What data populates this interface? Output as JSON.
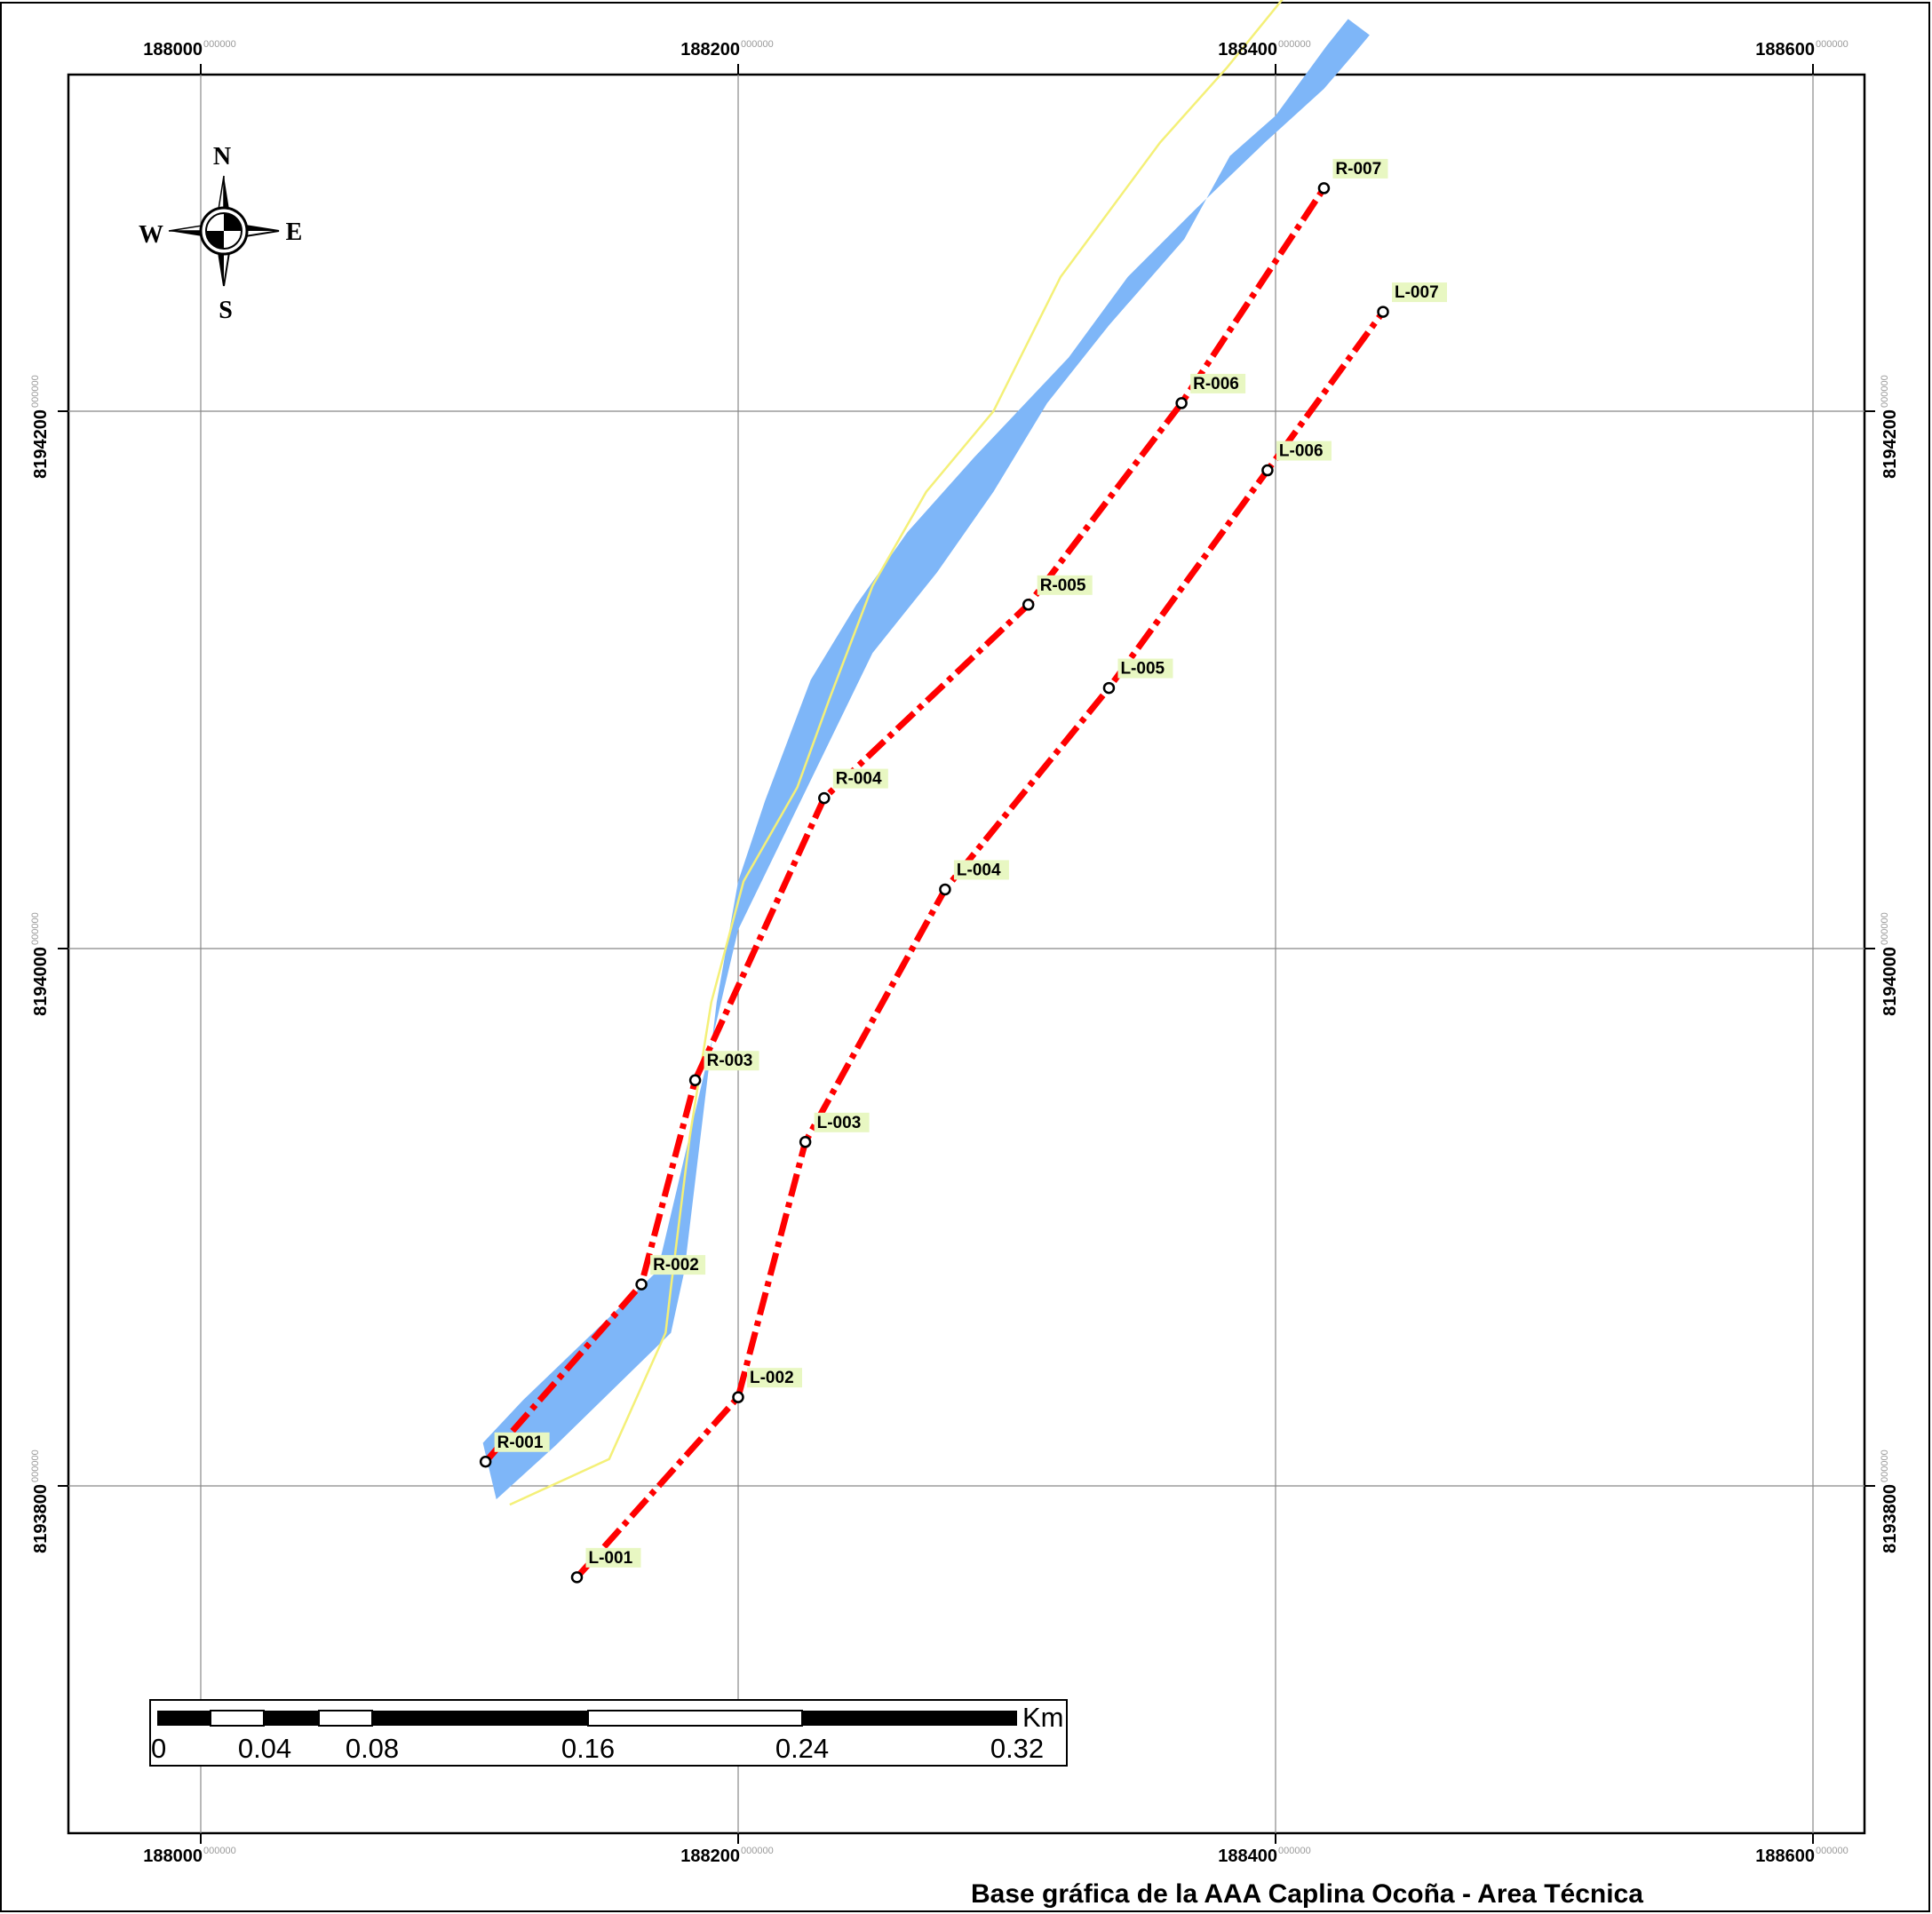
{
  "map": {
    "x_ticks": [
      {
        "main": "188000",
        "sub": "000000",
        "value": 188000
      },
      {
        "main": "188200",
        "sub": "000000",
        "value": 188200
      },
      {
        "main": "188400",
        "sub": "000000",
        "value": 188400
      },
      {
        "main": "188600",
        "sub": "000000",
        "value": 188600
      }
    ],
    "y_ticks": [
      {
        "main": "8194200",
        "sub": "000000",
        "value": 8194200
      },
      {
        "main": "8194000",
        "sub": "000000",
        "value": 8194000
      },
      {
        "main": "8193800",
        "sub": "000000",
        "value": 8193800
      }
    ],
    "colors": {
      "river": "#7eb6f8",
      "centerline": "#f4f078",
      "boundary": "#ff0000",
      "label_bg": "#e8f7c2",
      "grid": "#888888"
    },
    "river_polygon": [
      [
        188110,
        8193795
      ],
      [
        188132,
        8193815
      ],
      [
        188175,
        8193857
      ],
      [
        188180,
        8193880
      ],
      [
        188192,
        8193980
      ],
      [
        188200,
        8194025
      ],
      [
        188210,
        8194055
      ],
      [
        188227,
        8194100
      ],
      [
        188244,
        8194128
      ],
      [
        188263,
        8194155
      ],
      [
        188288,
        8194183
      ],
      [
        188323,
        8194220
      ],
      [
        188345,
        8194250
      ],
      [
        188370,
        8194275
      ],
      [
        188396,
        8194300
      ],
      [
        188418,
        8194320
      ],
      [
        188430,
        8194334
      ],
      [
        188435,
        8194340
      ],
      [
        188427,
        8194346
      ],
      [
        188419,
        8194336
      ],
      [
        188400,
        8194310
      ],
      [
        188383,
        8194295
      ],
      [
        188366,
        8194264
      ],
      [
        188338,
        8194232
      ],
      [
        188315,
        8194203
      ],
      [
        188295,
        8194170
      ],
      [
        188274,
        8194140
      ],
      [
        188250,
        8194110
      ],
      [
        188233,
        8194075
      ],
      [
        188200,
        8194007
      ],
      [
        188170,
        8193880
      ],
      [
        188120,
        8193832
      ],
      [
        188105,
        8193816
      ]
    ],
    "centerline": [
      [
        188115,
        8193793
      ],
      [
        188152,
        8193810
      ],
      [
        188173,
        8193857
      ],
      [
        188175,
        8193874
      ],
      [
        188182,
        8193930
      ],
      [
        188190,
        8193980
      ],
      [
        188202,
        8194025
      ],
      [
        188222,
        8194060
      ],
      [
        188234,
        8194093
      ],
      [
        188250,
        8194135
      ],
      [
        188270,
        8194170
      ],
      [
        188295,
        8194200
      ],
      [
        188320,
        8194250
      ],
      [
        188357,
        8194300
      ],
      [
        188382,
        8194328
      ],
      [
        188408,
        8194360
      ],
      [
        188420,
        8194377
      ],
      [
        188430,
        8194396
      ]
    ],
    "left_boundary": [
      [
        188140,
        8193766
      ],
      [
        188200,
        8193833
      ],
      [
        188225,
        8193928
      ],
      [
        188277,
        8194022
      ],
      [
        188338,
        8194097
      ],
      [
        188397,
        8194178
      ],
      [
        188440,
        8194237
      ]
    ],
    "right_boundary": [
      [
        188106,
        8193809
      ],
      [
        188164,
        8193875
      ],
      [
        188184,
        8193951
      ],
      [
        188232,
        8194056
      ],
      [
        188308,
        8194128
      ],
      [
        188365,
        8194203
      ],
      [
        188418,
        8194283
      ]
    ],
    "left_points": [
      "L-001",
      "L-002",
      "L-003",
      "L-004",
      "L-005",
      "L-006",
      "L-007"
    ],
    "right_points": [
      "R-001",
      "R-002",
      "R-003",
      "R-004",
      "R-005",
      "R-006",
      "R-007"
    ]
  },
  "compass": {
    "north": "N",
    "south": "S",
    "east": "E",
    "west": "W"
  },
  "scale_bar": {
    "unit": "Km",
    "labels": [
      "0",
      "0.04",
      "0.08",
      "0.16",
      "0.24",
      "0.32"
    ]
  },
  "credit": "Base gráfica de la AAA Caplina Ocoña - Area Técnica"
}
